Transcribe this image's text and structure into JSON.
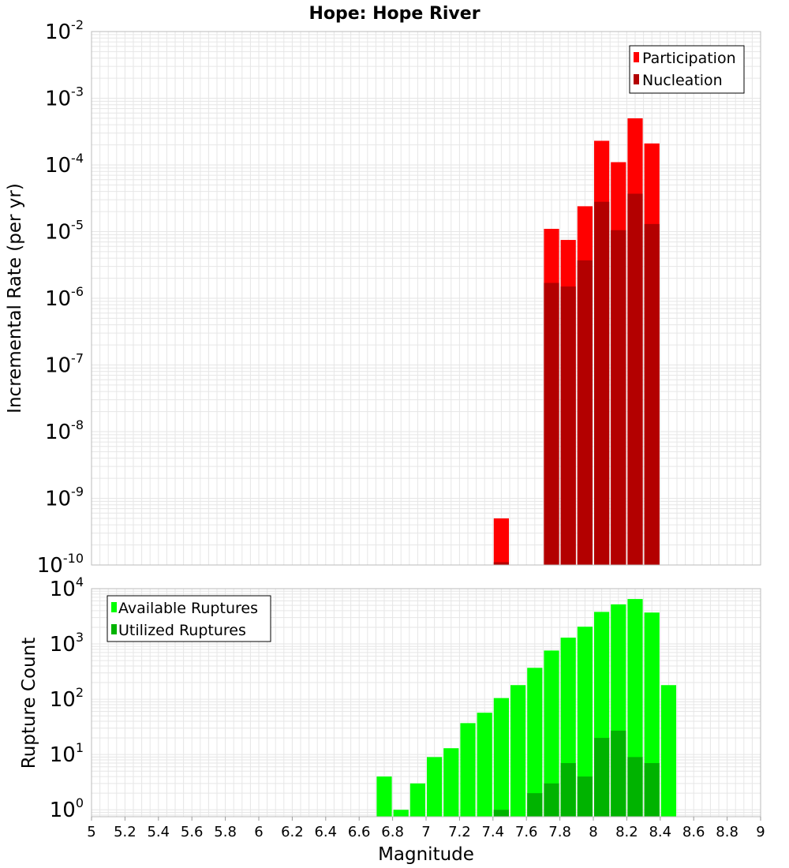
{
  "title": "Hope: Hope River",
  "xlabel": "Magnitude",
  "x_ticks": [
    "5",
    "5.2",
    "5.4",
    "5.6",
    "5.8",
    "6",
    "6.2",
    "6.4",
    "6.6",
    "6.8",
    "7",
    "7.2",
    "7.4",
    "7.6",
    "7.8",
    "8",
    "8.2",
    "8.4",
    "8.6",
    "8.8",
    "9"
  ],
  "colors": {
    "participation": "#ff0000",
    "nucleation": "#b30000",
    "available": "#00ff00",
    "utilized": "#00b300",
    "grid": "#e6e6e6",
    "frame": "#bbbbbb"
  },
  "chart_data": [
    {
      "type": "bar",
      "title": "Hope: Hope River",
      "xlabel": "Magnitude",
      "ylabel": "Incremental Rate (per yr)",
      "y_scale": "log",
      "xlim": [
        5,
        9
      ],
      "ylim": [
        1e-10,
        0.01
      ],
      "y_tick_exponents": [
        "-10",
        "-9",
        "-8",
        "-7",
        "-6",
        "-5",
        "-4",
        "-3",
        "-2"
      ],
      "legend_position": "top-right",
      "grid": true,
      "bin_width": 0.1,
      "x": [
        7.45,
        7.75,
        7.85,
        7.95,
        8.05,
        8.15,
        8.25,
        8.35
      ],
      "series": [
        {
          "name": "Participation",
          "color": "#ff0000",
          "values": [
            5e-10,
            1.1e-05,
            7.5e-06,
            2.4e-05,
            0.00023,
            0.00011,
            0.0005,
            0.00021
          ]
        },
        {
          "name": "Nucleation",
          "color": "#b30000",
          "values": [
            1.1e-10,
            1.7e-06,
            1.5e-06,
            3.7e-06,
            2.8e-05,
            1.05e-05,
            3.7e-05,
            1.3e-05
          ]
        }
      ]
    },
    {
      "type": "bar",
      "xlabel": "Magnitude",
      "ylabel": "Rupture Count",
      "y_scale": "log",
      "xlim": [
        5,
        9
      ],
      "ylim": [
        0.75,
        10000
      ],
      "y_tick_exponents": [
        "0",
        "1",
        "2",
        "3",
        "4"
      ],
      "legend_position": "top-left",
      "grid": true,
      "bin_width": 0.1,
      "x": [
        6.75,
        6.85,
        6.95,
        7.05,
        7.15,
        7.25,
        7.35,
        7.45,
        7.55,
        7.65,
        7.75,
        7.85,
        7.95,
        8.05,
        8.15,
        8.25,
        8.35,
        8.45
      ],
      "series": [
        {
          "name": "Available Ruptures",
          "color": "#00ff00",
          "values": [
            4,
            1,
            3,
            9,
            13,
            37,
            57,
            105,
            180,
            370,
            760,
            1300,
            2050,
            3800,
            5200,
            6500,
            3700,
            180
          ]
        },
        {
          "name": "Utilized Ruptures",
          "color": "#00b300",
          "values": [
            null,
            null,
            null,
            null,
            null,
            null,
            null,
            1,
            null,
            2,
            3,
            7,
            4,
            20,
            27,
            9,
            7,
            null
          ]
        }
      ]
    }
  ]
}
